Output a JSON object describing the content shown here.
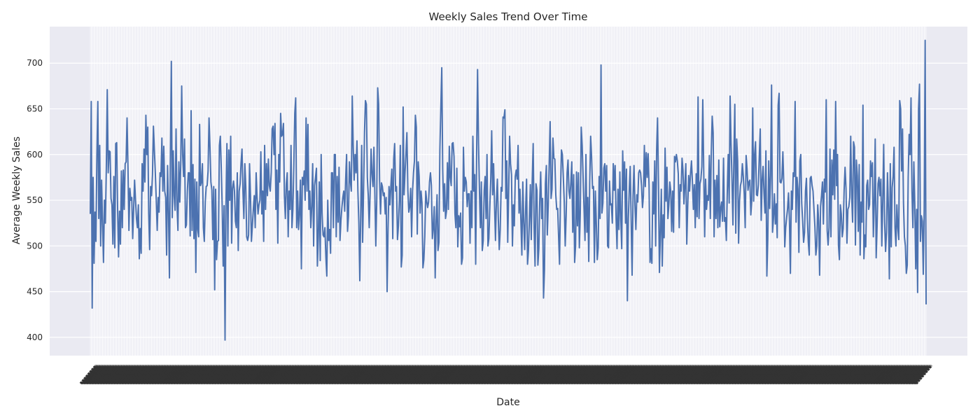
{
  "chart_data": {
    "type": "line",
    "title": "Weekly Sales Trend Over Time",
    "xlabel": "Date",
    "ylabel": "Average Weekly Sales",
    "ylim": [
      380,
      740
    ],
    "yticks": [
      400,
      450,
      500,
      550,
      600,
      650,
      700
    ],
    "grid": true,
    "style": "seaborn-darkgrid",
    "x_tick_labels_legible": false,
    "colors": {
      "line": "#4c72b0",
      "plot_bg": "#eaeaf2",
      "grid": "#ffffff",
      "figure_bg": "#ffffff"
    },
    "series": [
      {
        "values": [
          535,
          658,
          432,
          575,
          481,
          537,
          505,
          600,
          658,
          530,
          610,
          500,
          572,
          525,
          482,
          550,
          525,
          585,
          671,
          580,
          604,
          603,
          552,
          545,
          502,
          576,
          498,
          612,
          613,
          540,
          488,
          538,
          502,
          582,
          520,
          583,
          540,
          590,
          592,
          640,
          585,
          517,
          563,
          550,
          553,
          508,
          540,
          572,
          550,
          530,
          520,
          545,
          486,
          519,
          492,
          590,
          560,
          606,
          570,
          643,
          600,
          630,
          535,
          496,
          565,
          555,
          578,
          631,
          605,
          580,
          550,
          517,
          553,
          537,
          580,
          576,
          618,
          560,
          609,
          560,
          553,
          490,
          588,
          538,
          465,
          600,
          702,
          531,
          604,
          555,
          539,
          628,
          545,
          517,
          592,
          548,
          590,
          675,
          600,
          576,
          617,
          520,
          523,
          560,
          580,
          580,
          511,
          648,
          517,
          589,
          508,
          573,
          471,
          570,
          518,
          510,
          633,
          566,
          570,
          590,
          520,
          505,
          548,
          565,
          566,
          582,
          640,
          608,
          570,
          561,
          507,
          565,
          452,
          562,
          485,
          505,
          506,
          610,
          620,
          585,
          542,
          478,
          544,
          397,
          548,
          612,
          500,
          605,
          550,
          620,
          503,
          563,
          571,
          560,
          527,
          520,
          580,
          495,
          560,
          568,
          591,
          606,
          560,
          530,
          590,
          565,
          510,
          506,
          512,
          590,
          555,
          505,
          522,
          540,
          555,
          520,
          580,
          553,
          535,
          545,
          550,
          603,
          535,
          560,
          505,
          610,
          540,
          590,
          555,
          595,
          566,
          560,
          580,
          628,
          631,
          600,
          634,
          540,
          583,
          503,
          600,
          570,
          645,
          620,
          622,
          634,
          555,
          530,
          568,
          580,
          510,
          560,
          540,
          610,
          520,
          540,
          588,
          645,
          662,
          520,
          560,
          518,
          536,
          572,
          475,
          575,
          567,
          582,
          550,
          640,
          560,
          633,
          540,
          560,
          520,
          543,
          590,
          500,
          566,
          575,
          585,
          478,
          510,
          570,
          484,
          600,
          536,
          512,
          510,
          520,
          488,
          467,
          550,
          506,
          518,
          492,
          580,
          580,
          520,
          600,
          600,
          510,
          576,
          526,
          586,
          506,
          528,
          542,
          553,
          560,
          538,
          573,
          600,
          516,
          533,
          592,
          571,
          560,
          664,
          610,
          572,
          600,
          580,
          615,
          560,
          525,
          462,
          535,
          610,
          504,
          560,
          624,
          659,
          655,
          575,
          555,
          520,
          560,
          606,
          578,
          565,
          608,
          556,
          500,
          550,
          673,
          655,
          572,
          535,
          569,
          565,
          555,
          558,
          535,
          553,
          450,
          519,
          565,
          545,
          566,
          584,
          508,
          595,
          612,
          560,
          565,
          507,
          522,
          550,
          610,
          477,
          490,
          652,
          556,
          580,
          601,
          624,
          561,
          537,
          543,
          563,
          510,
          560,
          580,
          593,
          643,
          630,
          513,
          592,
          576,
          536,
          560,
          547,
          476,
          485,
          511,
          560,
          549,
          542,
          548,
          570,
          580,
          566,
          508,
          520,
          543,
          465,
          527,
          556,
          495,
          504,
          605,
          651,
          695,
          584,
          538,
          568,
          530,
          538,
          591,
          540,
          609,
          575,
          566,
          612,
          613,
          598,
          535,
          520,
          585,
          499,
          533,
          521,
          536,
          480,
          487,
          608,
          560,
          575,
          570,
          543,
          557,
          557,
          503,
          560,
          520,
          620,
          560,
          578,
          480,
          600,
          693,
          612,
          560,
          520,
          570,
          495,
          506,
          560,
          576,
          530,
          600,
          500,
          508,
          543,
          573,
          626,
          556,
          590,
          545,
          506,
          550,
          573,
          530,
          496,
          517,
          564,
          560,
          641,
          640,
          649,
          552,
          593,
          504,
          560,
          620,
          590,
          578,
          500,
          545,
          522,
          576,
          583,
          573,
          610,
          536,
          562,
          527,
          490,
          570,
          526,
          496,
          540,
          573,
          480,
          495,
          530,
          567,
          507,
          572,
          612,
          520,
          478,
          568,
          561,
          479,
          497,
          550,
          581,
          530,
          552,
          443,
          474,
          568,
          588,
          512,
          545,
          590,
          636,
          552,
          562,
          618,
          596,
          595,
          556,
          540,
          541,
          510,
          480,
          558,
          605,
          600,
          575,
          548,
          500,
          533,
          580,
          594,
          560,
          552,
          570,
          592,
          515,
          578,
          482,
          500,
          581,
          522,
          580,
          498,
          536,
          630,
          610,
          575,
          540,
          506,
          600,
          515,
          553,
          483,
          569,
          620,
          597,
          563,
          565,
          482,
          560,
          526,
          485,
          498,
          576,
          530,
          698,
          536,
          547,
          585,
          590,
          560,
          588,
          500,
          498,
          571,
          545,
          546,
          525,
          590,
          561,
          588,
          530,
          497,
          562,
          518,
          581,
          530,
          497,
          604,
          561,
          592,
          525,
          584,
          440,
          530,
          562,
          587,
          527,
          468,
          555,
          588,
          545,
          518,
          556,
          548,
          580,
          583,
          580,
          566,
          542,
          555,
          610,
          565,
          602,
          575,
          601,
          566,
          482,
          497,
          481,
          570,
          535,
          593,
          500,
          604,
          640,
          567,
          471,
          514,
          562,
          478,
          534,
          509,
          607,
          549,
          586,
          530,
          545,
          570,
          560,
          516,
          560,
          515,
          598,
          592,
          600,
          593,
          579,
          520,
          567,
          560,
          596,
          583,
          546,
          567,
          590,
          502,
          542,
          577,
          560,
          579,
          593,
          570,
          540,
          567,
          520,
          579,
          532,
          663,
          530,
          568,
          573,
          587,
          660,
          584,
          510,
          573,
          540,
          555,
          550,
          599,
          530,
          602,
          642,
          624,
          510,
          572,
          530,
          577,
          520,
          594,
          521,
          541,
          548,
          527,
          596,
          527,
          531,
          506,
          559,
          600,
          547,
          664,
          612,
          572,
          523,
          596,
          655,
          514,
          617,
          593,
          503,
          549,
          566,
          571,
          590,
          576,
          557,
          520,
          599,
          584,
          561,
          570,
          572,
          534,
          550,
          651,
          549,
          600,
          614,
          556,
          555,
          567,
          599,
          628,
          528,
          572,
          587,
          557,
          536,
          604,
          467,
          508,
          593,
          541,
          577,
          676,
          515,
          530,
          557,
          524,
          546,
          509,
          654,
          667,
          570,
          569,
          574,
          603,
          566,
          499,
          520,
          531,
          541,
          558,
          527,
          470,
          560,
          540,
          580,
          576,
          658,
          526,
          575,
          562,
          493,
          593,
          600,
          547,
          527,
          504,
          515,
          560,
          574,
          530,
          504,
          490,
          574,
          576,
          566,
          560,
          540,
          521,
          490,
          500,
          545,
          527,
          468,
          543,
          555,
          570,
          524,
          573,
          559,
          660,
          517,
          501,
          520,
          606,
          510,
          594,
          556,
          605,
          551,
          658,
          566,
          600,
          501,
          485,
          545,
          535,
          510,
          519,
          561,
          586,
          563,
          503,
          540,
          543,
          553,
          620,
          556,
          526,
          614,
          608,
          501,
          594,
          577,
          516,
          589,
          490,
          548,
          526,
          654,
          486,
          512,
          499,
          566,
          572,
          540,
          545,
          593,
          576,
          591,
          510,
          547,
          617,
          487,
          522,
          568,
          575,
          555,
          573,
          500,
          548,
          611,
          526,
          494,
          515,
          580,
          541,
          464,
          590,
          499,
          564,
          576,
          608,
          520,
          500,
          545,
          520,
          507,
          659,
          650,
          582,
          628,
          547,
          510,
          500,
          470,
          479,
          575,
          622,
          600,
          662,
          560,
          520,
          592,
          545,
          475,
          540,
          449,
          650,
          677,
          505,
          533,
          527,
          469,
          540,
          725,
          436
        ]
      }
    ]
  }
}
